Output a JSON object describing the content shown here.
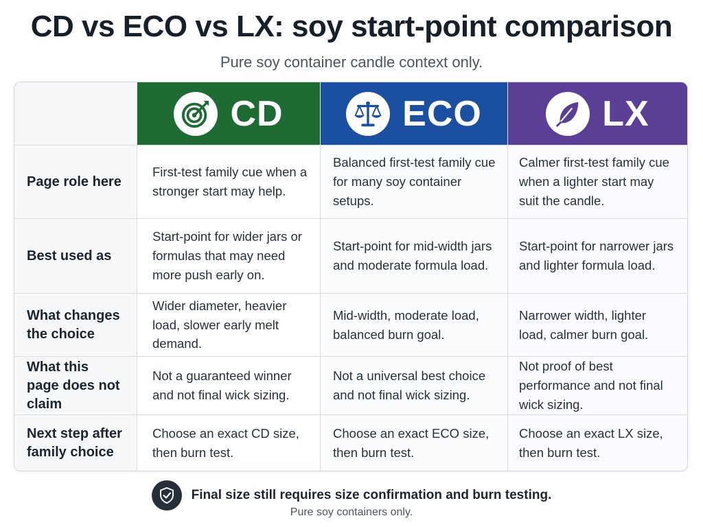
{
  "header": {
    "title": "CD vs ECO vs LX: soy start-point comparison",
    "subtitle": "Pure soy container candle context only."
  },
  "columns": [
    {
      "label": "CD",
      "icon": "target-icon",
      "color": "#1e6b34"
    },
    {
      "label": "ECO",
      "icon": "scales-icon",
      "color": "#1a4fa2"
    },
    {
      "label": "LX",
      "icon": "feather-icon",
      "color": "#5b3f97"
    }
  ],
  "rows": [
    {
      "label": "Page role here",
      "cells": [
        "First-test family cue when a stronger start may help.",
        "Balanced first-test family cue for many soy container setups.",
        "Calmer first-test family cue when a lighter start may suit the candle."
      ]
    },
    {
      "label": "Best used as",
      "cells": [
        "Start-point for wider jars or formulas that may need more push early on.",
        "Start-point for mid-width jars and moderate formula load.",
        "Start-point for narrower jars and lighter formula load."
      ]
    },
    {
      "label": "What changes the choice",
      "cells": [
        "Wider diameter, heavier load, slower early melt demand.",
        "Mid-width, moderate load, balanced burn goal.",
        "Narrower width, lighter load, calmer burn goal."
      ]
    },
    {
      "label": "What this page does not claim",
      "cells": [
        "Not a guaranteed winner and not final wick sizing.",
        "Not a universal best choice and not final wick sizing.",
        "Not proof of best performance and not final wick sizing."
      ]
    },
    {
      "label": "Next step after family choice",
      "cells": [
        "Choose an exact CD size, then burn test.",
        "Choose an exact ECO size, then burn test.",
        "Choose an exact LX size, then burn test."
      ]
    }
  ],
  "footer": {
    "icon": "shield-check-icon",
    "note": "Final size still requires size confirmation and burn testing.",
    "sub": "Pure soy containers only."
  }
}
